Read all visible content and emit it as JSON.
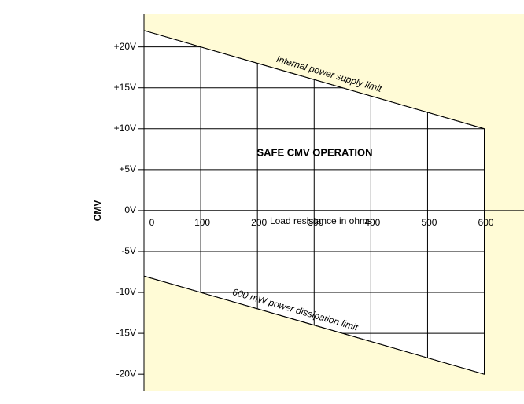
{
  "chart_data": {
    "type": "safe-area",
    "title": "SAFE CMV OPERATION",
    "x_label": "Load resistance in ohms",
    "y_label": "CMV",
    "xlim": [
      0,
      670
    ],
    "ylim": [
      -22,
      24
    ],
    "xticks": [
      0,
      100,
      200,
      300,
      400,
      500,
      600
    ],
    "yticks": [
      {
        "value": 20,
        "label": "+20V"
      },
      {
        "value": 15,
        "label": "+15V"
      },
      {
        "value": 10,
        "label": "+10V"
      },
      {
        "value": 5,
        "label": "+5V"
      },
      {
        "value": 0,
        "label": "0V"
      },
      {
        "value": -5,
        "label": "-5V"
      },
      {
        "value": -10,
        "label": "-10V"
      },
      {
        "value": -15,
        "label": "-15V"
      },
      {
        "value": -20,
        "label": "-20V"
      }
    ],
    "grid": true,
    "background_color": "#fffbd6",
    "safe_color": "#ffffff",
    "series": [
      {
        "name": "Internal power supply limit",
        "color": "#000000",
        "x": [
          0,
          600
        ],
        "values": [
          22,
          10
        ]
      },
      {
        "name": "600 mW power dissipation limit",
        "color": "#000000",
        "x": [
          0,
          600
        ],
        "values": [
          -8,
          -20
        ]
      }
    ]
  }
}
